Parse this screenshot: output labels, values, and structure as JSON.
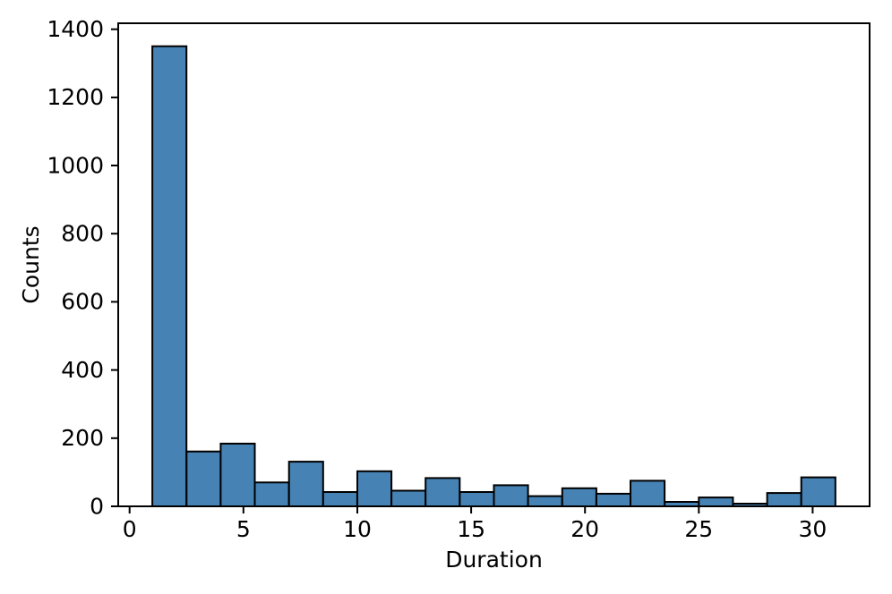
{
  "figure": {
    "background": "#ffffff"
  },
  "chart_data": {
    "type": "bar",
    "subtype": "histogram",
    "title": "",
    "xlabel": "Duration",
    "ylabel": "Counts",
    "bar_color": "#4682b4",
    "bar_edge_color": "#000000",
    "axis_color": "#000000",
    "grid": false,
    "legend": null,
    "bin_edges": [
      1.0,
      2.5,
      4.0,
      5.5,
      7.0,
      8.5,
      10.0,
      11.5,
      13.0,
      14.5,
      16.0,
      17.5,
      19.0,
      20.5,
      22.0,
      23.5,
      25.0,
      26.5,
      28.0,
      29.5,
      31.0
    ],
    "values": [
      1350,
      161,
      184,
      70,
      131,
      42,
      103,
      46,
      83,
      42,
      62,
      30,
      53,
      37,
      75,
      13,
      26,
      8,
      39,
      85
    ],
    "xticks": [
      0,
      5,
      10,
      15,
      20,
      25,
      30
    ],
    "yticks": [
      0,
      200,
      400,
      600,
      800,
      1000,
      1200,
      1400
    ],
    "xlim": [
      -0.5,
      32.5
    ],
    "ylim": [
      0,
      1417.5
    ]
  }
}
